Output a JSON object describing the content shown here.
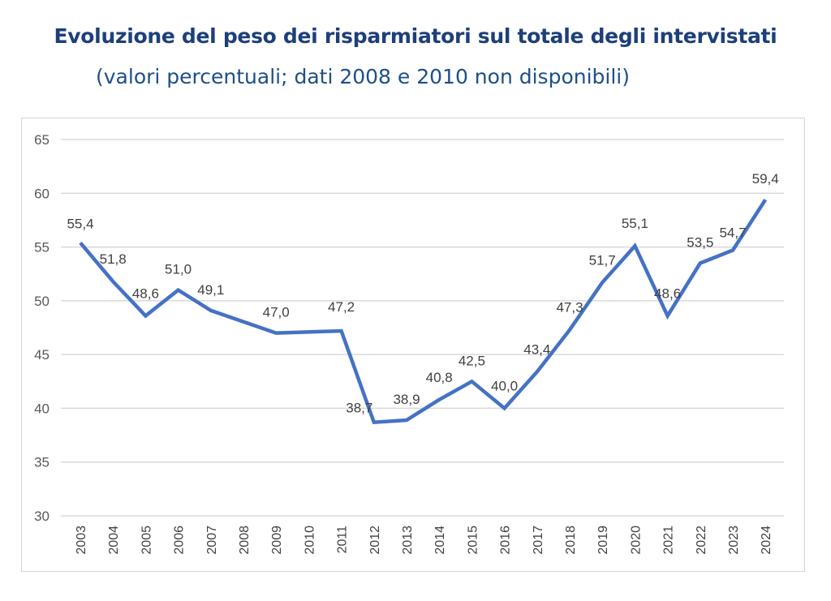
{
  "header": {
    "title": "Evoluzione del peso dei risparmiatori sul totale degli intervistati",
    "subtitle": "(valori percentuali; dati 2008 e 2010 non disponibili)"
  },
  "colors": {
    "line": "#4472c4",
    "grid": "#d9d9d9",
    "title": "#1d3f7a"
  },
  "chart_data": {
    "type": "line",
    "categories": [
      "2003",
      "2004",
      "2005",
      "2006",
      "2007",
      "2008",
      "2009",
      "2010",
      "2011",
      "2012",
      "2013",
      "2014",
      "2015",
      "2016",
      "2017",
      "2018",
      "2019",
      "2020",
      "2021",
      "2022",
      "2023",
      "2024"
    ],
    "series": [
      {
        "values": [
          55.4,
          51.8,
          48.6,
          51.0,
          49.1,
          null,
          47.0,
          null,
          47.2,
          38.7,
          38.9,
          40.8,
          42.5,
          40.0,
          43.4,
          47.3,
          51.7,
          55.1,
          48.6,
          53.5,
          54.7,
          59.4
        ],
        "labels": [
          "55,4",
          "51,8",
          "48,6",
          "51,0",
          "49,1",
          "",
          "47,0",
          "",
          "47,2",
          "38,7",
          "38,9",
          "40,8",
          "42,5",
          "40,0",
          "43,4",
          "47,3",
          "51,7",
          "55,1",
          "48,6",
          "53,5",
          "54,7",
          "59,4"
        ]
      }
    ],
    "ylim": [
      30,
      65
    ],
    "yticks": [
      "30",
      "35",
      "40",
      "45",
      "50",
      "55",
      "60",
      "65"
    ],
    "grid": true,
    "legend": "none",
    "xlabel": "",
    "ylabel": ""
  }
}
